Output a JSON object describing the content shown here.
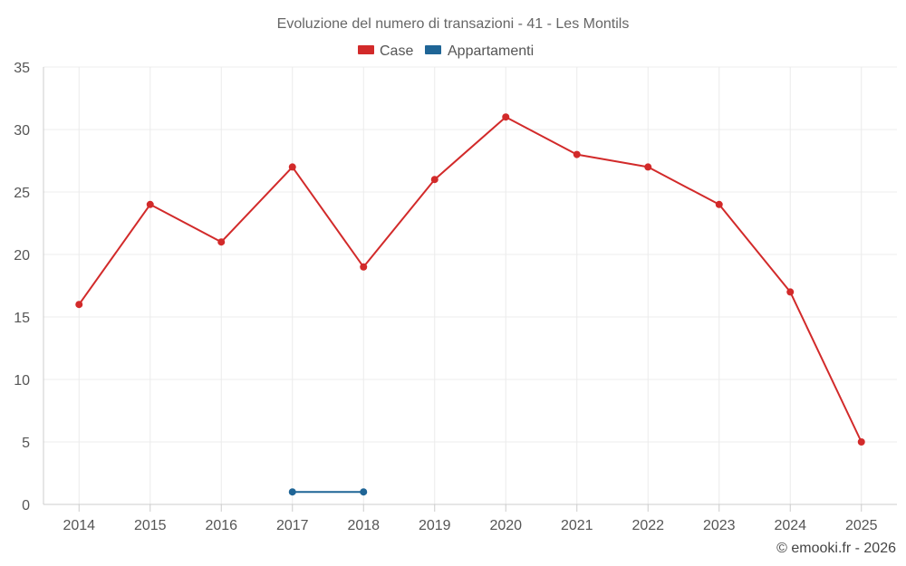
{
  "chart_data": {
    "type": "line",
    "title": "Evoluzione del numero di transazioni - 41 - Les Montils",
    "categories": [
      "2014",
      "2015",
      "2016",
      "2017",
      "2018",
      "2019",
      "2020",
      "2021",
      "2022",
      "2023",
      "2024",
      "2025"
    ],
    "series": [
      {
        "name": "Case",
        "color": "#d22a2a",
        "values": [
          16,
          24,
          21,
          27,
          19,
          26,
          31,
          28,
          27,
          24,
          17,
          5
        ]
      },
      {
        "name": "Appartamenti",
        "color": "#1f6596",
        "values": [
          null,
          null,
          null,
          1,
          1,
          null,
          null,
          null,
          null,
          null,
          null,
          null
        ]
      }
    ],
    "ylim": [
      0,
      35
    ],
    "yticks": [
      0,
      5,
      10,
      15,
      20,
      25,
      30,
      35
    ],
    "ytick_labels": [
      "0",
      "5",
      "10",
      "15",
      "20",
      "25",
      "30",
      "35"
    ],
    "grid": true,
    "legend_position": "top-center",
    "xlabel": "",
    "ylabel": ""
  },
  "credit": "© emooki.fr - 2026"
}
